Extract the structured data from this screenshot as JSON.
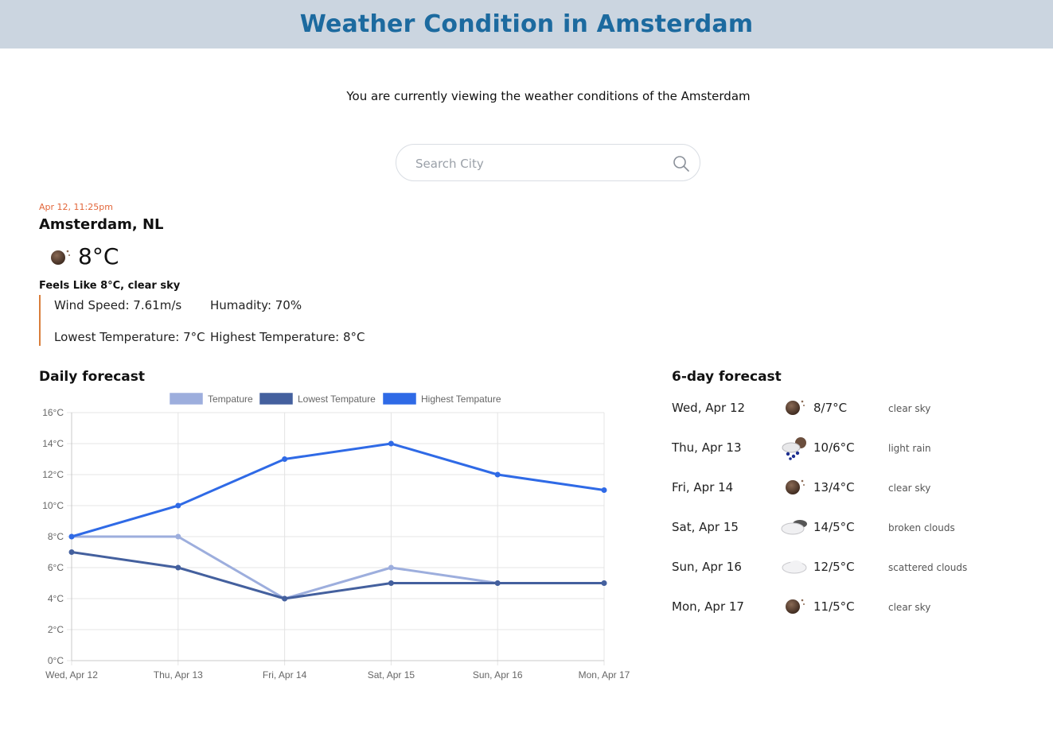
{
  "header": {
    "title": "Weather Condition in Amsterdam"
  },
  "subtitle": "You are currently viewing the weather conditions of the Amsterdam",
  "search": {
    "placeholder": "Search City",
    "value": ""
  },
  "current": {
    "datetime": "Apr 12, 11:25pm",
    "location": "Amsterdam, NL",
    "temperature": "8°C",
    "icon": "moon-icon",
    "feels_like": "Feels Like 8°C, clear sky",
    "wind_speed": "Wind Speed: 7.61m/s",
    "humidity": "Humadity: 70%",
    "lowest": "Lowest Temperature: 7°C",
    "highest": "Highest Temperature: 8°C"
  },
  "daily_title": "Daily forecast",
  "forecast_title": "6-day forecast",
  "forecast": [
    {
      "day": "Wed, Apr 12",
      "icon": "moon-icon",
      "temp": "8/7°C",
      "desc": "clear sky"
    },
    {
      "day": "Thu, Apr 13",
      "icon": "rain-icon",
      "temp": "10/6°C",
      "desc": "light rain"
    },
    {
      "day": "Fri, Apr 14",
      "icon": "moon-icon",
      "temp": "13/4°C",
      "desc": "clear sky"
    },
    {
      "day": "Sat, Apr 15",
      "icon": "broken-clouds-icon",
      "temp": "14/5°C",
      "desc": "broken clouds"
    },
    {
      "day": "Sun, Apr 16",
      "icon": "cloud-icon",
      "temp": "12/5°C",
      "desc": "scattered clouds"
    },
    {
      "day": "Mon, Apr 17",
      "icon": "moon-icon",
      "temp": "11/5°C",
      "desc": "clear sky"
    }
  ],
  "chart_data": {
    "type": "line",
    "categories": [
      "Wed, Apr 12",
      "Thu, Apr 13",
      "Fri, Apr 14",
      "Sat, Apr 15",
      "Sun, Apr 16",
      "Mon, Apr 17"
    ],
    "series": [
      {
        "name": "Tempature",
        "values": [
          8,
          8,
          4,
          6,
          5,
          5
        ],
        "color": "#9daedd"
      },
      {
        "name": "Lowest Tempature",
        "values": [
          7,
          6,
          4,
          5,
          5,
          5
        ],
        "color": "#44609e"
      },
      {
        "name": "Highest Tempature",
        "values": [
          8,
          10,
          13,
          14,
          12,
          11
        ],
        "color": "#2f6ae6"
      }
    ],
    "yticks": [
      "0°C",
      "2°C",
      "4°C",
      "6°C",
      "8°C",
      "10°C",
      "12°C",
      "14°C",
      "16°C"
    ],
    "ylim": [
      0,
      16
    ],
    "grid": true,
    "legend": "top-center"
  }
}
